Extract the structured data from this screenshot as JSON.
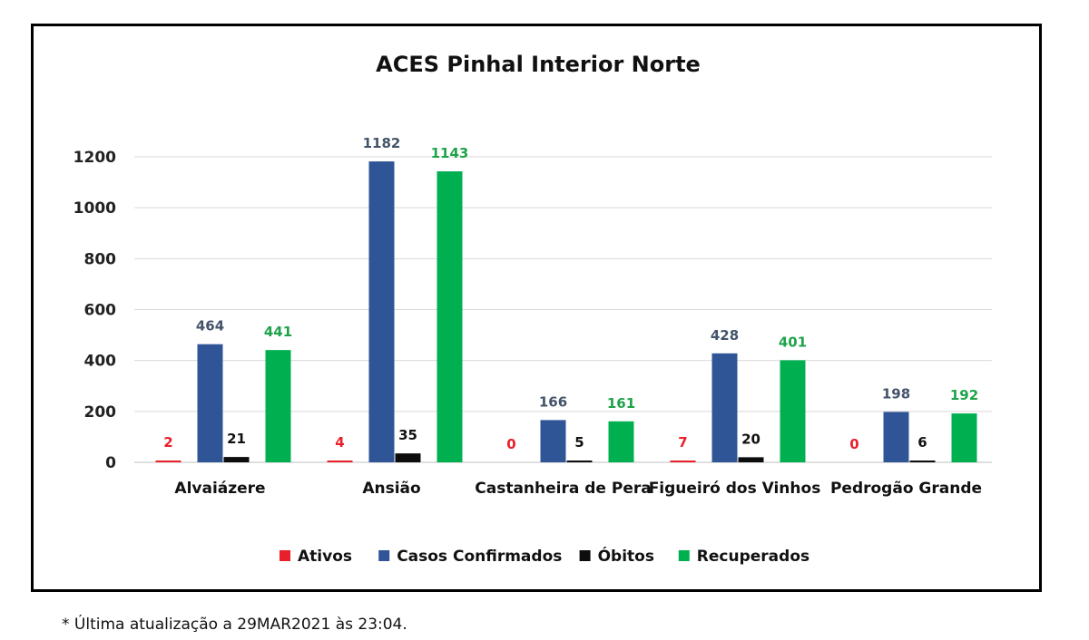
{
  "footnote": "* Última atualização a 29MAR2021 às 23:04.",
  "chart_data": {
    "type": "bar",
    "title": "ACES Pinhal Interior Norte",
    "xlabel": "",
    "ylabel": "",
    "ylim": [
      0,
      1200
    ],
    "yticks": [
      0,
      200,
      400,
      600,
      800,
      1000,
      1200
    ],
    "grid": true,
    "legend_position": "bottom",
    "categories": [
      "Alvaiázere",
      "Ansião",
      "Castanheira de Pera",
      "Figueiró dos Vinhos",
      "Pedrogão Grande"
    ],
    "series": [
      {
        "name": "Ativos",
        "color": "#e8202a",
        "label_color": "#e8202a",
        "values": [
          2,
          4,
          0,
          7,
          0
        ]
      },
      {
        "name": "Casos Confirmados",
        "color": "#2f5597",
        "label_color": "#44546a",
        "values": [
          464,
          1182,
          166,
          428,
          198
        ]
      },
      {
        "name": "Óbitos",
        "color": "#0d0d0d",
        "label_color": "#111111",
        "values": [
          21,
          35,
          5,
          20,
          6
        ]
      },
      {
        "name": "Recuperados",
        "color": "#00b050",
        "label_color": "#1fa34a",
        "values": [
          441,
          1143,
          161,
          401,
          192
        ]
      }
    ]
  }
}
